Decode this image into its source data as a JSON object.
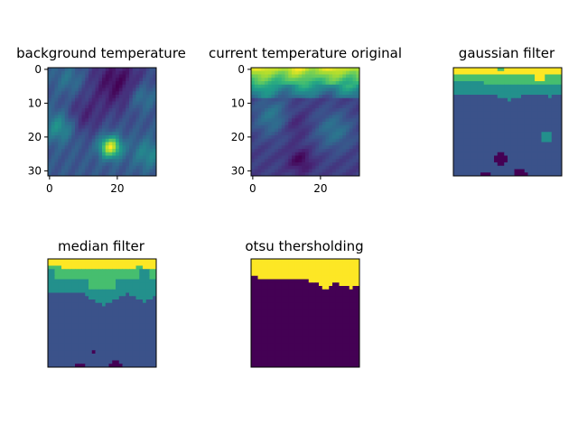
{
  "chart_data": [
    {
      "type": "heatmap",
      "title": "background temperature",
      "grid_size": 32,
      "xticks": [
        "0",
        "20"
      ],
      "yticks": [
        "0",
        "10",
        "20",
        "30"
      ],
      "axes_visible": true,
      "colormap": "viridis",
      "pattern": "background"
    },
    {
      "type": "heatmap",
      "title": "current temperature original",
      "grid_size": 32,
      "xticks": [
        "0",
        "20"
      ],
      "yticks": [
        "0",
        "10",
        "20",
        "30"
      ],
      "axes_visible": true,
      "colormap": "viridis",
      "pattern": "current"
    },
    {
      "type": "heatmap",
      "title": "gaussian filter",
      "grid_size": 32,
      "xticks": [],
      "yticks": [],
      "axes_visible": false,
      "colormap": "viridis",
      "pattern": "gaussian"
    },
    {
      "type": "heatmap",
      "title": "median filter",
      "grid_size": 32,
      "xticks": [],
      "yticks": [],
      "axes_visible": false,
      "colormap": "viridis",
      "pattern": "median"
    },
    {
      "type": "heatmap",
      "title": "otsu thersholding",
      "grid_size": 32,
      "xticks": [],
      "yticks": [],
      "axes_visible": false,
      "colormap": "binary-viridis",
      "pattern": "otsu"
    }
  ],
  "colors": {
    "viridis_dark": "#440154",
    "viridis_blue": "#3b528b",
    "viridis_teal": "#21918c",
    "viridis_green": "#5ec962",
    "viridis_yellow": "#fde725"
  }
}
